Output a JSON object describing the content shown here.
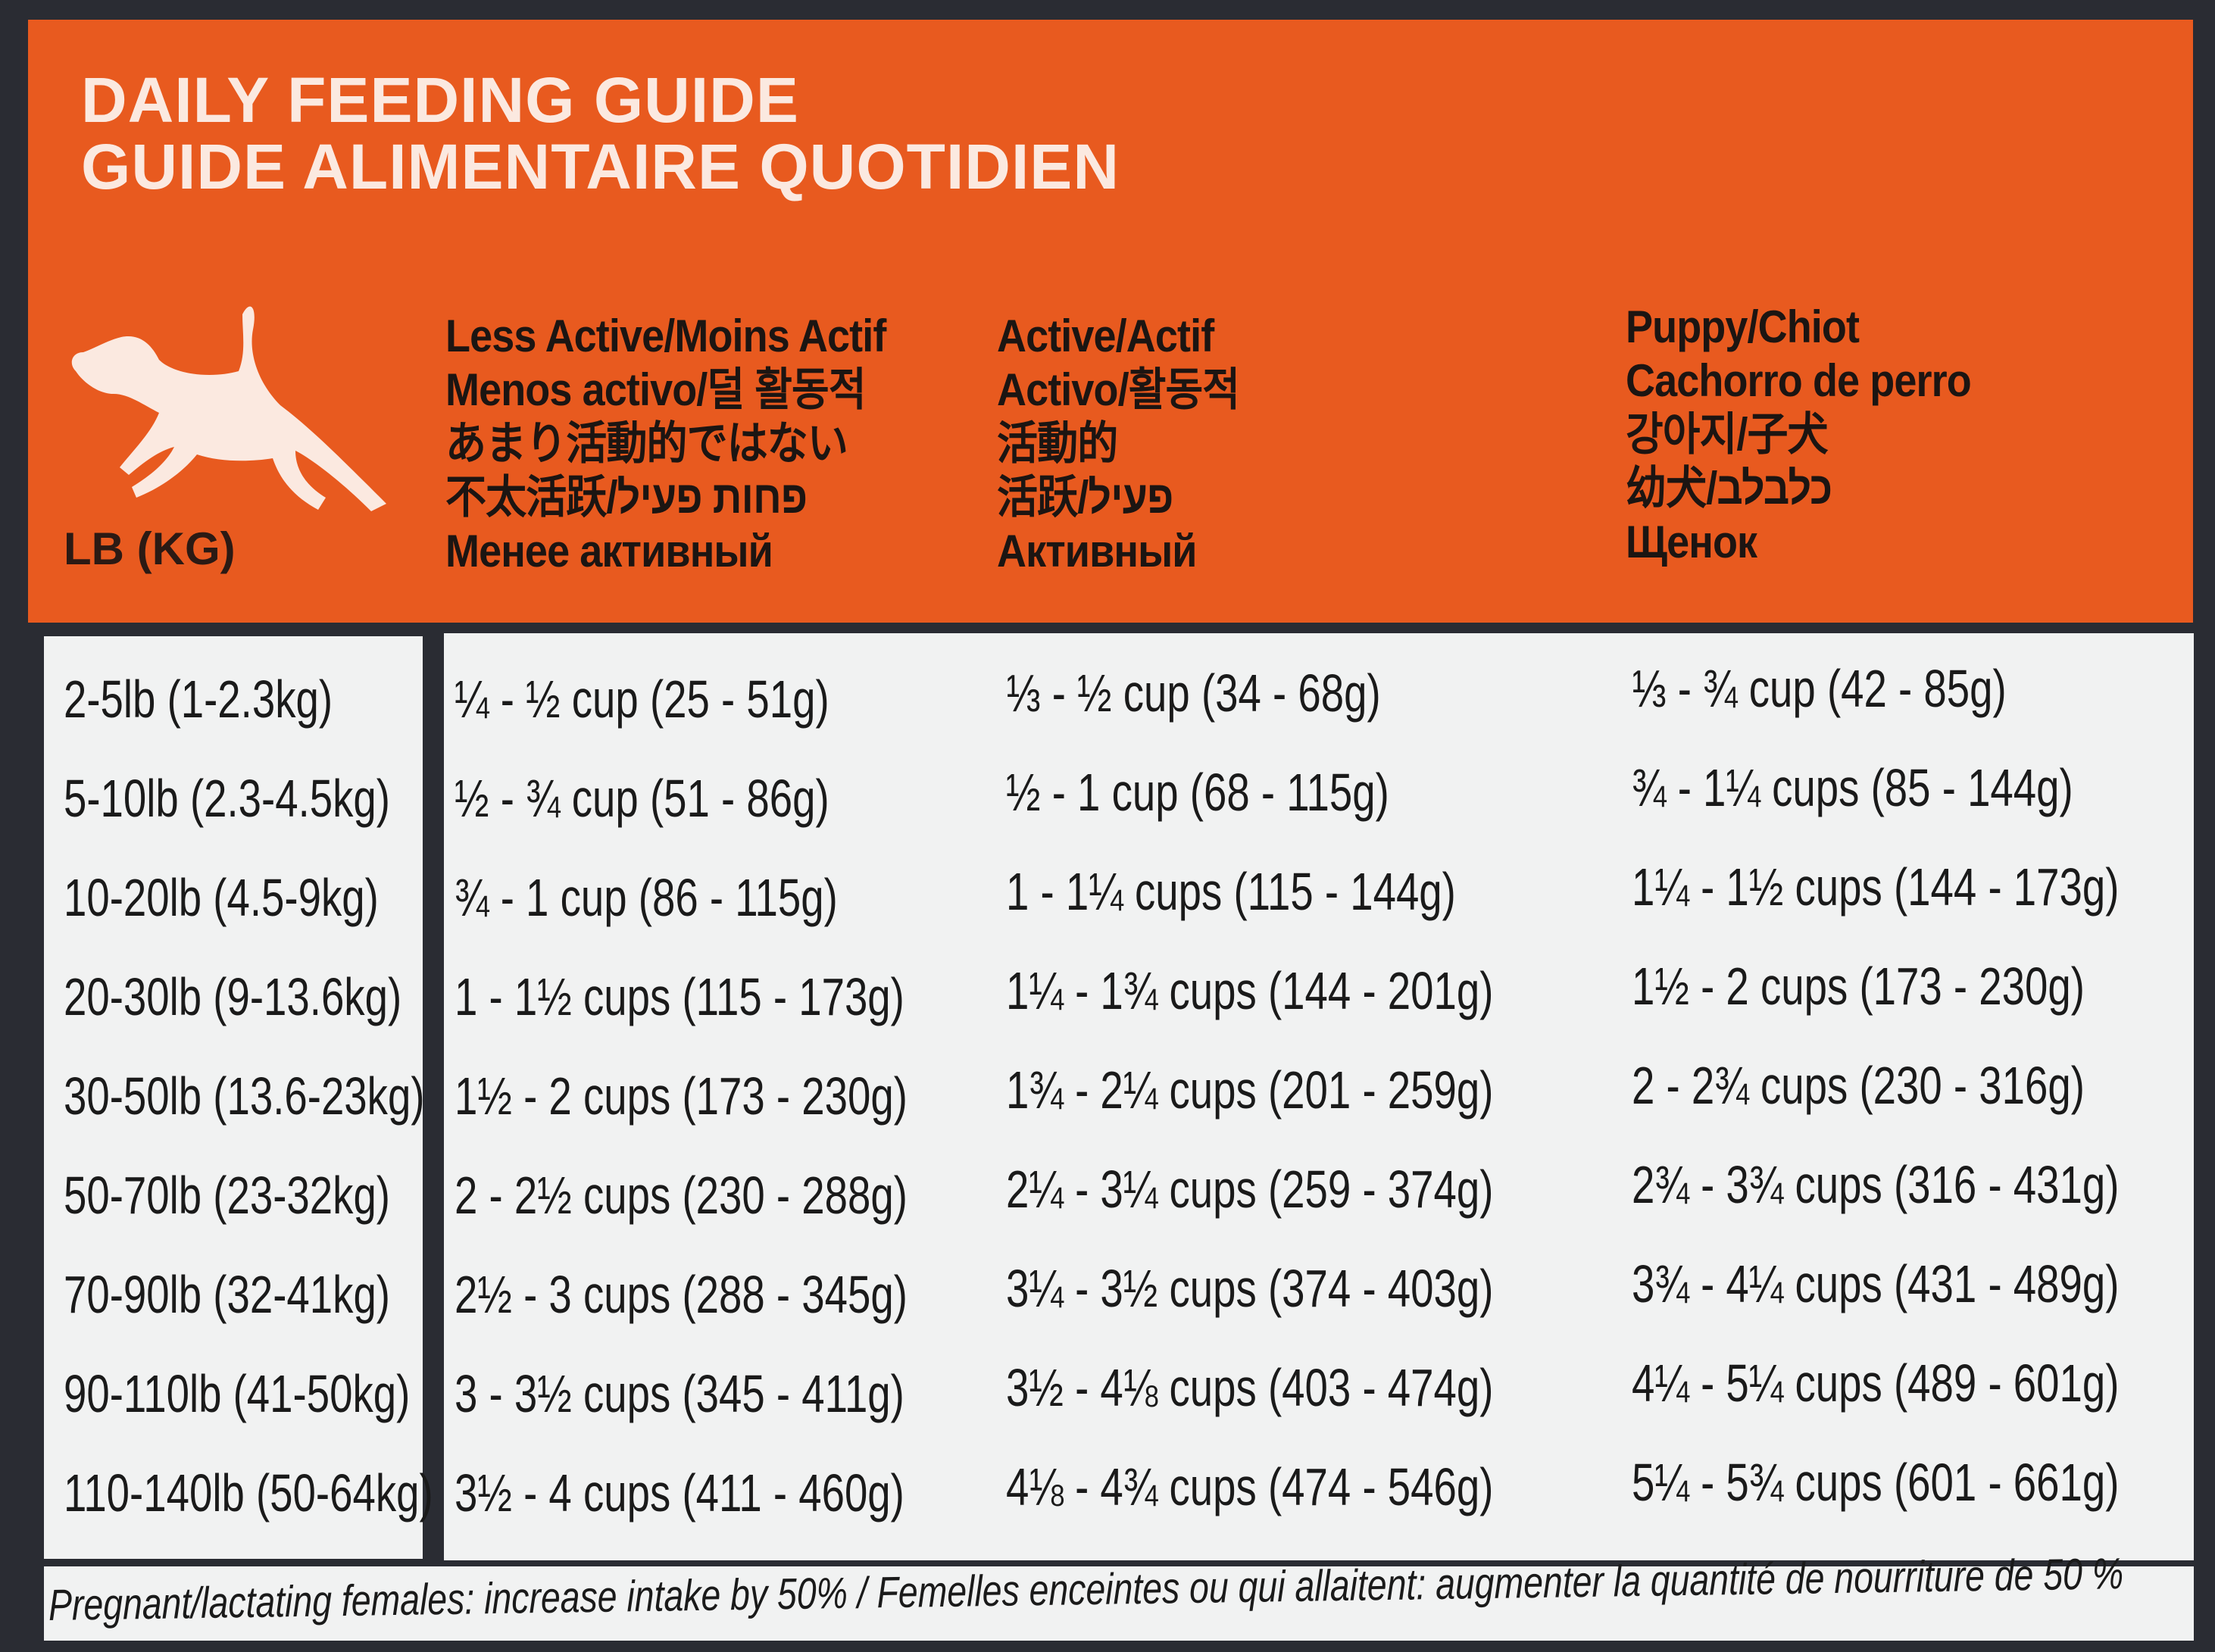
{
  "header": {
    "title_en": "DAILY FEEDING GUIDE",
    "title_fr": "GUIDE ALIMENTAIRE QUOTIDIEN",
    "weight_label": "LB (KG)",
    "dog_icon": "running-dog-icon",
    "columns": [
      {
        "lines": [
          "Less Active/Moins Actif",
          "Menos activo/덜 활동적",
          "あまり活動的ではない",
          "不太活跃/פחות פעיל",
          "Менее активный"
        ]
      },
      {
        "lines": [
          "Active/Actif",
          "Activo/활동적",
          "活動的",
          "活跃/פעיל",
          "Активный"
        ]
      },
      {
        "lines": [
          "Puppy/Chiot",
          "Cachorro de perro",
          "강아지/子犬",
          "幼犬/כלבלב",
          "Щенок"
        ]
      }
    ]
  },
  "table": {
    "rows": [
      {
        "weight": "2-5lb (1-2.3kg)",
        "less_active": "¼ - ½ cup (25 - 51g)",
        "active": "⅓ - ½ cup (34 - 68g)",
        "puppy": "⅓ - ¾ cup (42 - 85g)"
      },
      {
        "weight": "5-10lb (2.3-4.5kg)",
        "less_active": "½ - ¾ cup (51 - 86g)",
        "active": "½ - 1 cup (68 - 115g)",
        "puppy": "¾ - 1¼ cups (85 - 144g)"
      },
      {
        "weight": "10-20lb (4.5-9kg)",
        "less_active": "¾ - 1 cup (86 - 115g)",
        "active": "1 - 1¼ cups (115 - 144g)",
        "puppy": "1¼ - 1½ cups (144 - 173g)"
      },
      {
        "weight": "20-30lb (9-13.6kg)",
        "less_active": "1 - 1½ cups (115 - 173g)",
        "active": "1¼ - 1¾ cups (144 - 201g)",
        "puppy": "1½ - 2 cups (173 - 230g)"
      },
      {
        "weight": "30-50lb (13.6-23kg)",
        "less_active": "1½ - 2 cups (173 - 230g)",
        "active": "1¾ - 2¼ cups (201 - 259g)",
        "puppy": "2 - 2¾ cups (230 - 316g)"
      },
      {
        "weight": "50-70lb (23-32kg)",
        "less_active": "2 - 2½ cups (230 - 288g)",
        "active": "2¼ - 3¼ cups (259 - 374g)",
        "puppy": "2¾ - 3¾ cups (316 - 431g)"
      },
      {
        "weight": "70-90lb (32-41kg)",
        "less_active": "2½ - 3 cups (288 - 345g)",
        "active": "3¼ - 3½ cups (374 - 403g)",
        "puppy": "3¾ - 4¼ cups (431 - 489g)"
      },
      {
        "weight": "90-110lb (41-50kg)",
        "less_active": "3 - 3½ cups (345 - 411g)",
        "active": "3½ - 4⅛ cups (403 - 474g)",
        "puppy": "4¼ - 5¼ cups (489 - 601g)"
      },
      {
        "weight": "110-140lb (50-64kg)",
        "less_active": "3½ - 4 cups (411 - 460g)",
        "active": "4⅛ - 4¾ cups (474 - 546g)",
        "puppy": "5¼ - 5¾ cups (601 - 661g)"
      }
    ]
  },
  "footer": {
    "note": "Pregnant/lactating females: increase intake by 50% / Femelles enceintes ou qui allaitent: augmenter la quantité de nourriture de 50 %"
  },
  "colors": {
    "accent": "#e85a1f",
    "table_bg": "#f1f2f2",
    "border": "#2a2c33"
  }
}
